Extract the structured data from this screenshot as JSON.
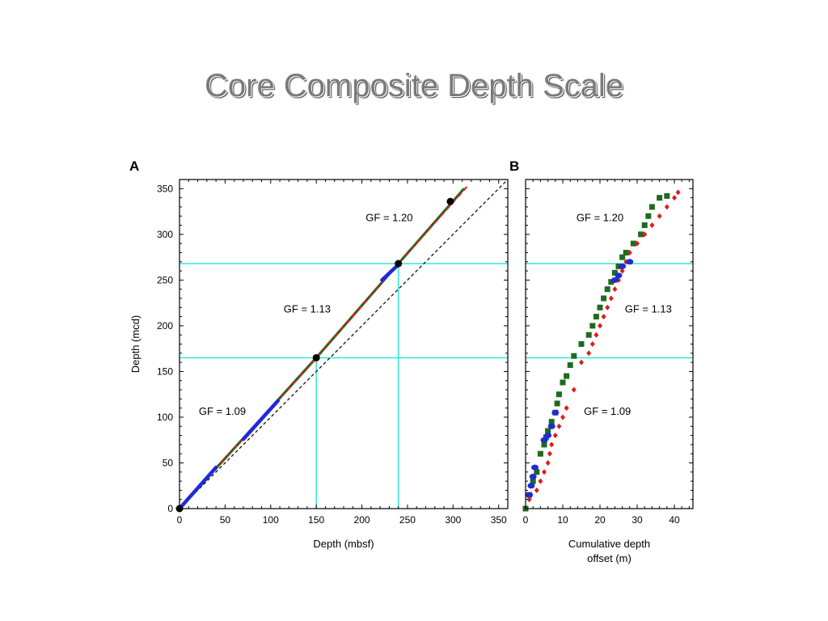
{
  "slide": {
    "title": "Core Composite Depth Scale"
  },
  "colors": {
    "green": "#1e6b1e",
    "red": "#e01b1b",
    "blue": "#1f2bd6",
    "cyan": "#2ee8d2",
    "black": "#000000"
  },
  "chart_data": [
    {
      "panel": "A",
      "type": "line",
      "xlabel": "Depth (mbsf)",
      "ylabel": "Depth (mcd)",
      "xlim": [
        0,
        360
      ],
      "ylim": [
        0,
        360
      ],
      "xticks": [
        0,
        50,
        100,
        150,
        200,
        250,
        300,
        350
      ],
      "yticks": [
        0,
        50,
        100,
        150,
        200,
        250,
        300,
        350
      ],
      "reference_line": {
        "x": [
          0,
          360
        ],
        "y": [
          0,
          360
        ],
        "style": "dashed"
      },
      "series": [
        {
          "color": "green",
          "style": "solid",
          "x": [
            0,
            150,
            240,
            312
          ],
          "y": [
            0,
            165,
            268,
            350
          ]
        },
        {
          "color": "red",
          "style": "dashed",
          "x": [
            0,
            150,
            240,
            315
          ],
          "y": [
            0,
            165,
            268,
            352
          ]
        },
        {
          "color": "blue",
          "style": "segments",
          "segments": [
            [
              [
                0,
                0
              ],
              [
                40,
                45
              ]
            ],
            [
              [
                70,
                76
              ],
              [
                108,
                118
              ]
            ],
            [
              [
                222,
                250
              ],
              [
                238,
                265
              ]
            ]
          ]
        }
      ],
      "breakpoints": [
        {
          "x": 0,
          "y": 0
        },
        {
          "x": 150,
          "y": 165
        },
        {
          "x": 240,
          "y": 268
        },
        {
          "x": 297,
          "y": 336
        }
      ],
      "guides": {
        "horizontal": [
          165,
          268
        ],
        "vertical": [
          150,
          240
        ]
      },
      "annotations": [
        {
          "text": "GF = 1.20",
          "x": 230,
          "y": 318
        },
        {
          "text": "GF = 1.13",
          "x": 140,
          "y": 218
        },
        {
          "text": "GF = 1.09",
          "x": 47,
          "y": 106
        }
      ]
    },
    {
      "panel": "B",
      "type": "scatter",
      "xlabel": "Cumulative depth offset (m)",
      "xlabel_lines": [
        "Cumulative depth",
        "offset (m)"
      ],
      "xlim": [
        0,
        45
      ],
      "ylim": [
        0,
        360
      ],
      "xticks": [
        0,
        10,
        20,
        30,
        40
      ],
      "guides": {
        "horizontal": [
          165,
          268
        ]
      },
      "series": [
        {
          "color": "green",
          "marker": "square",
          "x": [
            0,
            1,
            2,
            3,
            4,
            5,
            5.5,
            6,
            7,
            8,
            8.5,
            9,
            10,
            11,
            12,
            13,
            15,
            17,
            18,
            19,
            20,
            21,
            22,
            23,
            24,
            25,
            26,
            27,
            29,
            31,
            32,
            33,
            34,
            36,
            38
          ],
          "y": [
            0,
            15,
            30,
            40,
            60,
            70,
            78,
            85,
            95,
            105,
            115,
            125,
            138,
            145,
            157,
            167,
            180,
            190,
            200,
            210,
            220,
            230,
            240,
            248,
            258,
            265,
            275,
            280,
            290,
            300,
            310,
            320,
            330,
            340,
            342
          ]
        },
        {
          "color": "red",
          "marker": "diamond",
          "x": [
            1,
            3,
            4,
            5,
            6,
            6.5,
            7,
            8,
            9,
            10,
            11,
            13,
            15,
            17,
            18,
            19,
            20,
            21,
            22,
            23,
            24,
            25,
            26,
            27,
            28,
            30,
            32,
            34,
            36,
            38,
            40,
            41
          ],
          "y": [
            10,
            20,
            30,
            40,
            50,
            60,
            70,
            80,
            90,
            100,
            110,
            130,
            160,
            170,
            180,
            190,
            200,
            210,
            220,
            230,
            240,
            250,
            260,
            270,
            280,
            290,
            300,
            310,
            320,
            330,
            340,
            346
          ]
        },
        {
          "color": "blue",
          "marker": "circle",
          "x": [
            1,
            1.5,
            2,
            2.5,
            5,
            6,
            7,
            8,
            24,
            25,
            26,
            28
          ],
          "y": [
            15,
            25,
            35,
            45,
            75,
            80,
            90,
            105,
            250,
            255,
            265,
            270
          ]
        }
      ],
      "annotations": [
        {
          "text": "GF = 1.20",
          "x": 20,
          "y": 318
        },
        {
          "text": "GF = 1.13",
          "x": 33,
          "y": 218
        },
        {
          "text": "GF = 1.09",
          "x": 22,
          "y": 106
        }
      ]
    }
  ]
}
